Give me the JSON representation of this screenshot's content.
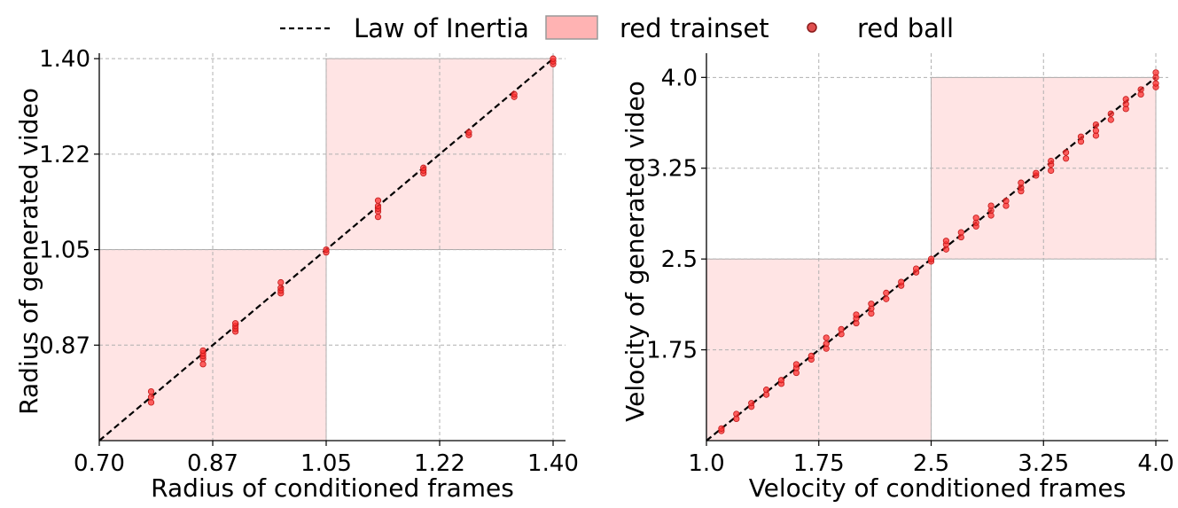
{
  "legend": {
    "items": [
      {
        "label": "Law of Inertia",
        "kind": "dashed-line",
        "color": "#000000"
      },
      {
        "label": "red trainset",
        "kind": "patch",
        "color": "#ffb3b3",
        "edge": "#999999"
      },
      {
        "label": "red ball",
        "kind": "marker",
        "color": "#e05050",
        "edge": "#8b1a1a"
      }
    ]
  },
  "chart_data": [
    {
      "type": "scatter",
      "title": "",
      "xlabel": "Radius of conditioned frames",
      "ylabel": "Radius of generated video",
      "xlim": [
        0.7,
        1.4
      ],
      "ylim": [
        0.7,
        1.41
      ],
      "xticks": [
        0.7,
        0.875,
        1.05,
        1.225,
        1.4
      ],
      "xtick_labels": [
        "0.70",
        "0.87",
        "1.05",
        "1.22",
        "1.40"
      ],
      "yticks": [
        0.875,
        1.05,
        1.225,
        1.4
      ],
      "ytick_labels": [
        "0.87",
        "1.05",
        "1.22",
        "1.40"
      ],
      "grid": true,
      "reference_line": {
        "label": "Law of Inertia",
        "points": [
          [
            0.7,
            0.7
          ],
          [
            1.4,
            1.4
          ]
        ]
      },
      "train_regions": [
        {
          "x": [
            0.7,
            1.05
          ],
          "y": [
            0.7,
            1.05
          ]
        },
        {
          "x": [
            1.05,
            1.4
          ],
          "y": [
            1.05,
            1.4
          ]
        }
      ],
      "series": [
        {
          "name": "red ball",
          "x": [
            0.78,
            0.78,
            0.78,
            0.86,
            0.86,
            0.86,
            0.86,
            0.86,
            0.91,
            0.91,
            0.91,
            0.91,
            0.98,
            0.98,
            0.98,
            0.98,
            1.05,
            1.05,
            1.13,
            1.13,
            1.13,
            1.13,
            1.13,
            1.2,
            1.2,
            1.2,
            1.27,
            1.27,
            1.34,
            1.34,
            1.4,
            1.4,
            1.4
          ],
          "y": [
            0.77,
            0.78,
            0.79,
            0.84,
            0.85,
            0.855,
            0.86,
            0.865,
            0.9,
            0.905,
            0.91,
            0.915,
            0.97,
            0.975,
            0.98,
            0.99,
            1.045,
            1.05,
            1.11,
            1.12,
            1.125,
            1.13,
            1.14,
            1.19,
            1.195,
            1.2,
            1.26,
            1.265,
            1.33,
            1.335,
            1.39,
            1.395,
            1.4
          ]
        }
      ]
    },
    {
      "type": "scatter",
      "title": "",
      "xlabel": "Velocity of conditioned frames",
      "ylabel": "Velocity of generated video",
      "xlim": [
        1.0,
        4.0
      ],
      "ylim": [
        1.0,
        4.2
      ],
      "xticks": [
        1.0,
        1.75,
        2.5,
        3.25,
        4.0
      ],
      "xtick_labels": [
        "1.0",
        "1.75",
        "2.5",
        "3.25",
        "4.0"
      ],
      "yticks": [
        1.75,
        2.5,
        3.25,
        4.0
      ],
      "ytick_labels": [
        "1.75",
        "2.5",
        "3.25",
        "4.0"
      ],
      "grid": true,
      "reference_line": {
        "label": "Law of Inertia",
        "points": [
          [
            1.0,
            1.0
          ],
          [
            4.0,
            4.0
          ]
        ]
      },
      "train_regions": [
        {
          "x": [
            1.0,
            2.5
          ],
          "y": [
            1.0,
            2.5
          ]
        },
        {
          "x": [
            2.5,
            4.0
          ],
          "y": [
            2.5,
            4.0
          ]
        }
      ],
      "series": [
        {
          "name": "red ball",
          "x": [
            1.1,
            1.1,
            1.2,
            1.2,
            1.3,
            1.3,
            1.4,
            1.4,
            1.5,
            1.5,
            1.6,
            1.6,
            1.6,
            1.7,
            1.7,
            1.8,
            1.8,
            1.8,
            1.9,
            1.9,
            2.0,
            2.0,
            2.0,
            2.1,
            2.1,
            2.1,
            2.2,
            2.2,
            2.3,
            2.3,
            2.4,
            2.4,
            2.5,
            2.5,
            2.6,
            2.6,
            2.6,
            2.7,
            2.7,
            2.8,
            2.8,
            2.8,
            2.9,
            2.9,
            2.9,
            3.0,
            3.0,
            3.1,
            3.1,
            3.1,
            3.2,
            3.2,
            3.3,
            3.3,
            3.3,
            3.4,
            3.4,
            3.5,
            3.5,
            3.6,
            3.6,
            3.6,
            3.7,
            3.7,
            3.8,
            3.8,
            3.8,
            3.9,
            3.9,
            4.0,
            4.0,
            4.0,
            4.0
          ],
          "y": [
            1.08,
            1.1,
            1.18,
            1.22,
            1.28,
            1.31,
            1.38,
            1.42,
            1.47,
            1.5,
            1.56,
            1.6,
            1.63,
            1.67,
            1.7,
            1.76,
            1.8,
            1.85,
            1.88,
            1.92,
            1.97,
            2.01,
            2.04,
            2.05,
            2.09,
            2.13,
            2.17,
            2.22,
            2.28,
            2.31,
            2.39,
            2.42,
            2.48,
            2.5,
            2.58,
            2.62,
            2.65,
            2.68,
            2.72,
            2.77,
            2.8,
            2.84,
            2.86,
            2.9,
            2.94,
            2.94,
            2.98,
            3.06,
            3.09,
            3.13,
            3.19,
            3.21,
            3.23,
            3.28,
            3.31,
            3.33,
            3.38,
            3.47,
            3.51,
            3.52,
            3.56,
            3.61,
            3.65,
            3.7,
            3.74,
            3.78,
            3.82,
            3.86,
            3.9,
            3.92,
            3.95,
            4.0,
            4.04
          ]
        }
      ]
    }
  ]
}
